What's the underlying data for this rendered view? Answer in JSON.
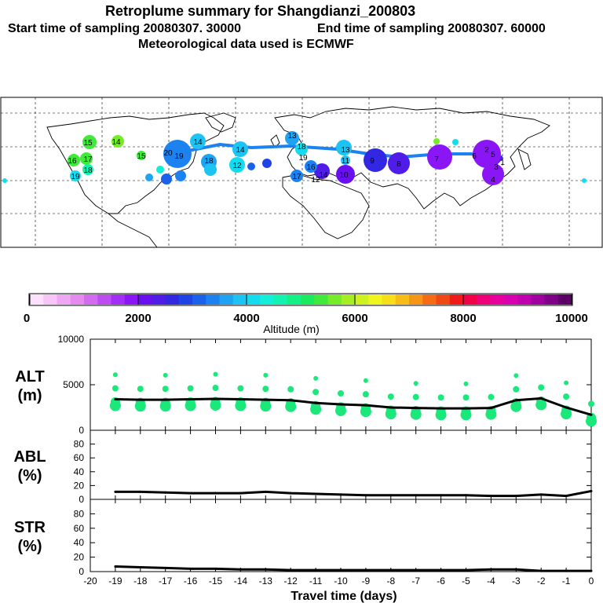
{
  "header": {
    "title": "Retroplume summary for Shangdianzi_200803",
    "start": "Start time of sampling 20080307. 30000",
    "end": "End time of sampling 20080307. 60000",
    "met": "Meteorological data used is ECMWF"
  },
  "colorbar": {
    "label": "Altitude (m)",
    "ticks": [
      "0",
      "2000",
      "4000",
      "6000",
      "8000",
      "10000"
    ],
    "colors": [
      "#fde0fd",
      "#f7c6f7",
      "#eea8f3",
      "#e48af0",
      "#d36bf0",
      "#bd4cf2",
      "#a32ef5",
      "#8a16f5",
      "#6a0ff0",
      "#4f1ce8",
      "#3328e2",
      "#1f44e6",
      "#1a62ea",
      "#1c82ef",
      "#1ea3f2",
      "#1cc3f3",
      "#14dcef",
      "#12efd8",
      "#12f2b0",
      "#14ef88",
      "#1aeb5e",
      "#41ea3a",
      "#74ec28",
      "#a4ee22",
      "#cef21e",
      "#f0f51c",
      "#f7de19",
      "#f8bc17",
      "#f79616",
      "#f56c14",
      "#f04a14",
      "#f01a1a",
      "#f20048",
      "#ef0078",
      "#e8009e",
      "#d800b0",
      "#c000b0",
      "#a000a0",
      "#800088",
      "#5c0068"
    ]
  },
  "chart_data": [
    {
      "type": "line",
      "panel": "ALT",
      "ylabel_line1": "ALT",
      "ylabel_line2": "(m)",
      "ylim": [
        0,
        10000
      ],
      "yticks": [
        "10000",
        "5000",
        "0"
      ],
      "x": [
        -19,
        -18,
        -17,
        -16,
        -15,
        -14,
        -13,
        -12,
        -11,
        -10,
        -9,
        -8,
        -7,
        -6,
        -5,
        -4,
        -3,
        -2,
        -1,
        0
      ],
      "values": [
        3400,
        3350,
        3350,
        3400,
        3450,
        3400,
        3350,
        3300,
        3000,
        2850,
        2750,
        2500,
        2450,
        2400,
        2400,
        2450,
        3300,
        3500,
        2500,
        1700
      ]
    },
    {
      "type": "line",
      "panel": "ABL",
      "ylabel_line1": "ABL",
      "ylabel_line2": "(%)",
      "ylim": [
        0,
        100
      ],
      "yticks": [
        "80",
        "60",
        "40",
        "20",
        "0"
      ],
      "x": [
        -19,
        -18,
        -17,
        -16,
        -15,
        -14,
        -13,
        -12,
        -11,
        -10,
        -9,
        -8,
        -7,
        -6,
        -5,
        -4,
        -3,
        -2,
        -1,
        0
      ],
      "values": [
        11,
        11,
        10,
        9,
        9,
        9,
        11,
        9,
        8,
        7,
        6,
        6,
        6,
        6,
        6,
        5,
        5,
        7,
        5,
        12
      ]
    },
    {
      "type": "line",
      "panel": "STR",
      "ylabel_line1": "STR",
      "ylabel_line2": "(%)",
      "ylim": [
        0,
        100
      ],
      "yticks": [
        "80",
        "60",
        "40",
        "20",
        "0"
      ],
      "x": [
        -19,
        -18,
        -17,
        -16,
        -15,
        -14,
        -13,
        -12,
        -11,
        -10,
        -9,
        -8,
        -7,
        -6,
        -5,
        -4,
        -3,
        -2,
        -1,
        0
      ],
      "values": [
        7,
        6,
        5,
        4,
        4,
        3,
        3,
        2,
        2,
        2,
        2,
        2,
        2,
        2,
        2,
        3,
        3,
        1,
        1,
        1
      ]
    }
  ],
  "xaxis": {
    "label": "Travel time (days)",
    "ticks": [
      "-20",
      "-19",
      "-18",
      "-17",
      "-16",
      "-15",
      "-14",
      "-13",
      "-12",
      "-11",
      "-10",
      "-9",
      "-8",
      "-7",
      "-6",
      "-5",
      "-4",
      "-3",
      "-2",
      "-1",
      "0"
    ]
  },
  "map": {
    "plume_labels": [
      "15",
      "14",
      "16",
      "17",
      "18",
      "19",
      "15",
      "20",
      "19",
      "18",
      "14",
      "12",
      "13",
      "14",
      "16",
      "17",
      "18",
      "19",
      "13",
      "12",
      "14",
      "10",
      "9",
      "8",
      "7",
      "6",
      "5",
      "4",
      "3",
      "2",
      "1",
      "11"
    ]
  }
}
